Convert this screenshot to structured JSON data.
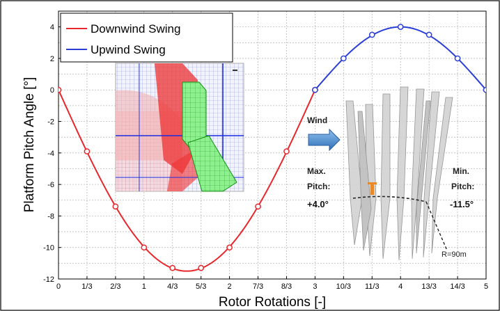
{
  "chart_data": {
    "type": "line",
    "xlabel": "Rotor Rotations [-]",
    "ylabel": "Platform Pitch Angle [°]",
    "xlim": [
      0,
      5
    ],
    "ylim": [
      -12,
      5
    ],
    "xticks": [
      0,
      0.3333,
      0.6667,
      1,
      1.3333,
      1.6667,
      2,
      2.3333,
      2.6667,
      3,
      3.3333,
      3.6667,
      4,
      4.3333,
      4.6667,
      5
    ],
    "xtick_labels": [
      "0",
      "1/3",
      "2/3",
      "1",
      "4/3",
      "5/3",
      "2",
      "7/3",
      "8/3",
      "3",
      "10/3",
      "11/3",
      "4",
      "13/3",
      "14/3",
      "5"
    ],
    "yticks": [
      -12,
      -10,
      -8,
      -6,
      -4,
      -2,
      0,
      2,
      4
    ],
    "ytick_labels": [
      "-12",
      "-10",
      "-8",
      "-6",
      "-4",
      "-2",
      "0",
      "2",
      "4"
    ],
    "grid": true,
    "legend_position": "top-left",
    "series": [
      {
        "name": "Downwind Swing",
        "color": "#e8262b",
        "points_x": [
          0,
          0.3333,
          0.6667,
          1,
          1.3333,
          1.6667,
          2,
          2.3333,
          2.6667,
          3
        ],
        "points_y": [
          0,
          -3.9,
          -7.4,
          -10.0,
          -11.3,
          -11.3,
          -10.0,
          -7.4,
          -3.9,
          0
        ],
        "curve_min": -11.5
      },
      {
        "name": "Upwind Swing",
        "color": "#2b3fd6",
        "points_x": [
          3,
          3.3333,
          3.6667,
          4,
          4.3333,
          4.6667,
          5
        ],
        "points_y": [
          0,
          2.0,
          3.5,
          4.0,
          3.5,
          2.0,
          0
        ],
        "curve_max": 4.0
      }
    ]
  },
  "annotations": {
    "wind_label": "Wind",
    "max_label_1": "Max.",
    "max_label_2": "Pitch:",
    "max_value": "+4.0°",
    "min_label_1": "Min.",
    "min_label_2": "Pitch:",
    "min_value": "-11.5°",
    "radius_label": "R=90m"
  },
  "icons": {
    "wind_arrow": "right-arrow-icon",
    "mesh_image": "cfd-mesh-image",
    "turbine_image": "rotor-blades-image"
  }
}
